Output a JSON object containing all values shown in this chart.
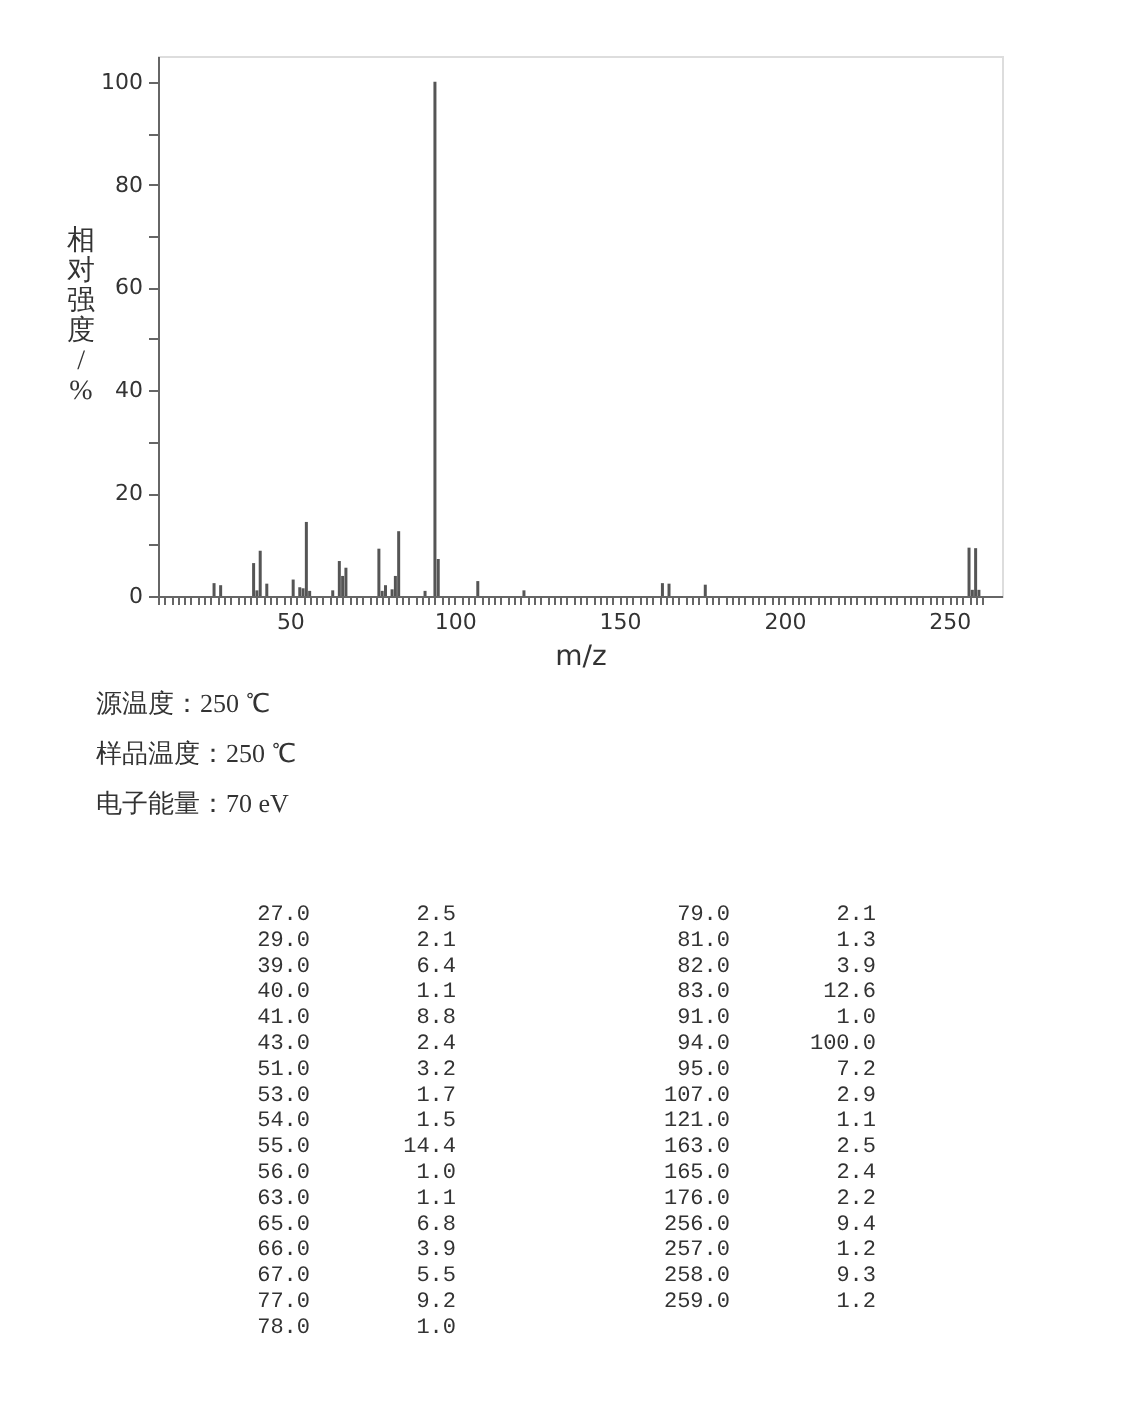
{
  "chart_data": [
    {
      "type": "bar",
      "xlabel": "m/z",
      "ylabel": "相对强度/%",
      "color": "#555555",
      "x": [
        27,
        29,
        39,
        40,
        41,
        43,
        51,
        53,
        54,
        55,
        56,
        63,
        65,
        66,
        67,
        77,
        78,
        79,
        81,
        82,
        83,
        91,
        94,
        95,
        107,
        121,
        163,
        165,
        176,
        256,
        257,
        258,
        259
      ],
      "values": [
        2.5,
        2.1,
        6.4,
        1.1,
        8.8,
        2.4,
        3.2,
        1.7,
        1.5,
        14.4,
        1.0,
        1.1,
        6.8,
        3.9,
        5.5,
        9.2,
        1.0,
        2.1,
        1.3,
        3.9,
        12.6,
        1.0,
        100.0,
        7.2,
        2.9,
        1.1,
        2.5,
        2.4,
        2.2,
        9.4,
        1.2,
        9.3,
        1.2
      ],
      "xlim": [
        10,
        266
      ],
      "ylim": [
        0,
        105
      ],
      "xticks": [
        {
          "value": 10,
          "label": null
        },
        {
          "value": 12,
          "label": null
        },
        {
          "value": 14,
          "label": null
        },
        {
          "value": 16,
          "label": null
        },
        {
          "value": 18,
          "label": null
        },
        {
          "value": 20,
          "label": null
        },
        {
          "value": 22,
          "label": null
        },
        {
          "value": 24,
          "label": null
        },
        {
          "value": 26,
          "label": null
        },
        {
          "value": 28,
          "label": null
        },
        {
          "value": 30,
          "label": null
        },
        {
          "value": 32,
          "label": null
        },
        {
          "value": 34,
          "label": null
        },
        {
          "value": 36,
          "label": null
        },
        {
          "value": 38,
          "label": null
        },
        {
          "value": 40,
          "label": null
        },
        {
          "value": 42,
          "label": null
        },
        {
          "value": 44,
          "label": null
        },
        {
          "value": 46,
          "label": null
        },
        {
          "value": 48,
          "label": null
        },
        50,
        {
          "value": 52,
          "label": null
        },
        {
          "value": 54,
          "label": null
        },
        {
          "value": 56,
          "label": null
        },
        {
          "value": 58,
          "label": null
        },
        {
          "value": 60,
          "label": null
        },
        {
          "value": 62,
          "label": null
        },
        {
          "value": 64,
          "label": null
        },
        {
          "value": 66,
          "label": null
        },
        {
          "value": 68,
          "label": null
        },
        {
          "value": 70,
          "label": null
        },
        {
          "value": 72,
          "label": null
        },
        {
          "value": 74,
          "label": null
        },
        {
          "value": 76,
          "label": null
        },
        {
          "value": 78,
          "label": null
        },
        {
          "value": 80,
          "label": null
        },
        {
          "value": 82,
          "label": null
        },
        {
          "value": 84,
          "label": null
        },
        {
          "value": 86,
          "label": null
        },
        {
          "value": 88,
          "label": null
        },
        {
          "value": 90,
          "label": null
        },
        {
          "value": 92,
          "label": null
        },
        {
          "value": 94,
          "label": null
        },
        {
          "value": 96,
          "label": null
        },
        {
          "value": 98,
          "label": null
        },
        100,
        {
          "value": 102,
          "label": null
        },
        {
          "value": 104,
          "label": null
        },
        {
          "value": 106,
          "label": null
        },
        {
          "value": 108,
          "label": null
        },
        {
          "value": 110,
          "label": null
        },
        {
          "value": 112,
          "label": null
        },
        {
          "value": 114,
          "label": null
        },
        {
          "value": 116,
          "label": null
        },
        {
          "value": 118,
          "label": null
        },
        {
          "value": 120,
          "label": null
        },
        {
          "value": 122,
          "label": null
        },
        {
          "value": 124,
          "label": null
        },
        {
          "value": 126,
          "label": null
        },
        {
          "value": 128,
          "label": null
        },
        {
          "value": 130,
          "label": null
        },
        {
          "value": 132,
          "label": null
        },
        {
          "value": 134,
          "label": null
        },
        {
          "value": 136,
          "label": null
        },
        {
          "value": 138,
          "label": null
        },
        {
          "value": 140,
          "label": null
        },
        {
          "value": 142,
          "label": null
        },
        {
          "value": 144,
          "label": null
        },
        {
          "value": 146,
          "label": null
        },
        {
          "value": 148,
          "label": null
        },
        150,
        {
          "value": 152,
          "label": null
        },
        {
          "value": 154,
          "label": null
        },
        {
          "value": 156,
          "label": null
        },
        {
          "value": 158,
          "label": null
        },
        {
          "value": 160,
          "label": null
        },
        {
          "value": 162,
          "label": null
        },
        {
          "value": 164,
          "label": null
        },
        {
          "value": 166,
          "label": null
        },
        {
          "value": 168,
          "label": null
        },
        {
          "value": 170,
          "label": null
        },
        {
          "value": 172,
          "label": null
        },
        {
          "value": 174,
          "label": null
        },
        {
          "value": 176,
          "label": null
        },
        {
          "value": 178,
          "label": null
        },
        {
          "value": 180,
          "label": null
        },
        {
          "value": 182,
          "label": null
        },
        {
          "value": 184,
          "label": null
        },
        {
          "value": 186,
          "label": null
        },
        {
          "value": 188,
          "label": null
        },
        {
          "value": 190,
          "label": null
        },
        {
          "value": 192,
          "label": null
        },
        {
          "value": 194,
          "label": null
        },
        {
          "value": 196,
          "label": null
        },
        {
          "value": 198,
          "label": null
        },
        200,
        {
          "value": 202,
          "label": null
        },
        {
          "value": 204,
          "label": null
        },
        {
          "value": 206,
          "label": null
        },
        {
          "value": 208,
          "label": null
        },
        {
          "value": 210,
          "label": null
        },
        {
          "value": 212,
          "label": null
        },
        {
          "value": 214,
          "label": null
        },
        {
          "value": 216,
          "label": null
        },
        {
          "value": 218,
          "label": null
        },
        {
          "value": 220,
          "label": null
        },
        {
          "value": 222,
          "label": null
        },
        {
          "value": 224,
          "label": null
        },
        {
          "value": 226,
          "label": null
        },
        {
          "value": 228,
          "label": null
        },
        {
          "value": 230,
          "label": null
        },
        {
          "value": 232,
          "label": null
        },
        {
          "value": 234,
          "label": null
        },
        {
          "value": 236,
          "label": null
        },
        {
          "value": 238,
          "label": null
        },
        {
          "value": 240,
          "label": null
        },
        {
          "value": 242,
          "label": null
        },
        {
          "value": 244,
          "label": null
        },
        {
          "value": 246,
          "label": null
        },
        {
          "value": 248,
          "label": null
        },
        250,
        {
          "value": 252,
          "label": null
        },
        {
          "value": 254,
          "label": null
        },
        {
          "value": 256,
          "label": null
        },
        {
          "value": 258,
          "label": null
        },
        {
          "value": 260,
          "label": null
        }
      ],
      "yticks": [
        0,
        {
          "value": 10,
          "label": null
        },
        20,
        {
          "value": 30,
          "label": null
        },
        40,
        {
          "value": 50,
          "label": null
        },
        60,
        {
          "value": 70,
          "label": null
        },
        80,
        {
          "value": 90,
          "label": null
        },
        100
      ],
      "annotations": [
        "源温度：250 ℃",
        "样品温度：250 ℃",
        "电子能量：70 eV"
      ]
    },
    {
      "type": "other",
      "categories": [
        "27.0",
        "29.0",
        "39.0",
        "40.0",
        "41.0",
        "43.0",
        "51.0",
        "53.0",
        "54.0",
        "55.0",
        "56.0",
        "63.0",
        "65.0",
        "66.0",
        "67.0",
        "77.0",
        "78.0",
        "79.0",
        "81.0",
        "82.0",
        "83.0",
        "91.0",
        "94.0",
        "95.0",
        "107.0",
        "121.0",
        "163.0",
        "165.0",
        "176.0",
        "256.0",
        "257.0",
        "258.0",
        "259.0"
      ],
      "values": [
        2.5,
        2.1,
        6.4,
        1.1,
        8.8,
        2.4,
        3.2,
        1.7,
        1.5,
        14.4,
        1.0,
        1.1,
        6.8,
        3.9,
        5.5,
        9.2,
        1.0,
        2.1,
        1.3,
        3.9,
        12.6,
        1.0,
        100.0,
        7.2,
        2.9,
        1.1,
        2.5,
        2.4,
        2.2,
        9.4,
        1.2,
        9.3,
        1.2
      ],
      "value_labels": [
        "2.5",
        "2.1",
        "6.4",
        "1.1",
        "8.8",
        "2.4",
        "3.2",
        "1.7",
        "1.5",
        "14.4",
        "1.0",
        "1.1",
        "6.8",
        "3.9",
        "5.5",
        "9.2",
        "1.0",
        "2.1",
        "1.3",
        "3.9",
        "12.6",
        "1.0",
        "100.0",
        "7.2",
        "2.9",
        "1.1",
        "2.5",
        "2.4",
        "2.2",
        "9.4",
        "1.2",
        "9.3",
        "1.2"
      ]
    }
  ]
}
